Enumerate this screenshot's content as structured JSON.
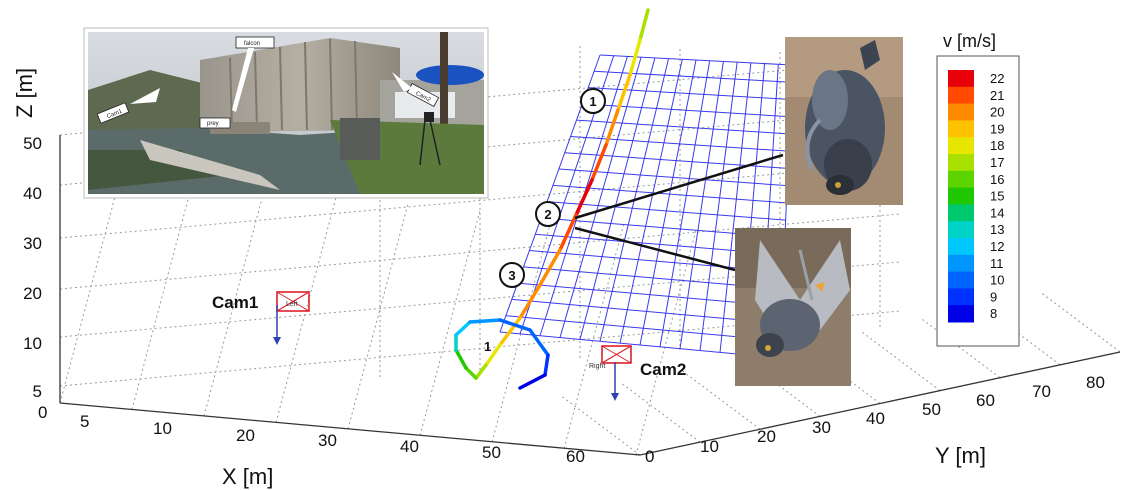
{
  "chart_data": {
    "type": "line3d",
    "zlabel": "Z [m]",
    "xlabel": "X [m]",
    "ylabel": "Y [m]",
    "z_ticks": [
      "5",
      "10",
      "20",
      "30",
      "40",
      "50"
    ],
    "x_ticks": [
      "0",
      "5",
      "10",
      "20",
      "30",
      "40",
      "50",
      "60"
    ],
    "y_ticks": [
      "0",
      "10",
      "20",
      "30",
      "40",
      "50",
      "60",
      "70",
      "80"
    ],
    "colorbar": {
      "title": "v [m/s]",
      "ticks": [
        "22",
        "21",
        "20",
        "19",
        "18",
        "17",
        "16",
        "15",
        "14",
        "13",
        "12",
        "11",
        "10",
        "9",
        "8"
      ],
      "colors": [
        "#e8000b",
        "#ff4a00",
        "#ff8c00",
        "#ffc200",
        "#e6e600",
        "#a8e000",
        "#5cd400",
        "#1fc800",
        "#00c86e",
        "#00d2c8",
        "#00c8ff",
        "#0096ff",
        "#0064ff",
        "#0032ff",
        "#0000e6"
      ]
    },
    "cameras": [
      {
        "label": "Cam1",
        "tag": "Left"
      },
      {
        "label": "Cam2",
        "tag": "Right"
      }
    ],
    "markers": [
      "1",
      "2",
      "3"
    ],
    "origin_label": "1",
    "inset_labels": {
      "falcon": "falcon",
      "cam1": "Cam1",
      "cam2": "Cam2",
      "prey": "prey"
    }
  }
}
